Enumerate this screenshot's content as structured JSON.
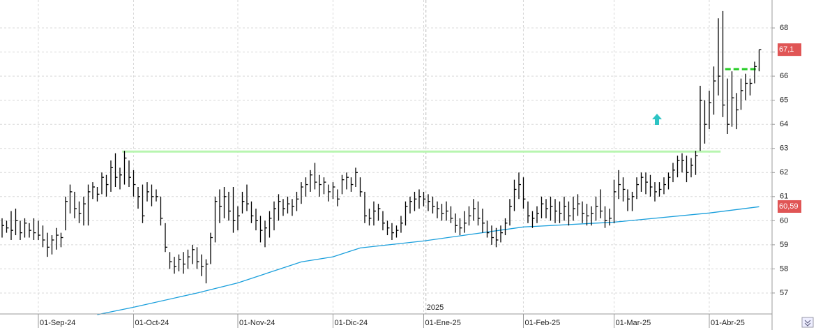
{
  "chart_data": {
    "type": "ohlc",
    "color": "#000000",
    "xlim": [
      -0.46,
      169.85
    ],
    "ylim": [
      56.13,
      69.16
    ],
    "yticks": [
      57,
      58,
      59,
      60,
      61,
      62,
      63,
      64,
      65,
      66,
      67,
      68
    ],
    "xticks": [
      {
        "value": 8,
        "label": "01-Sep-24"
      },
      {
        "value": 29,
        "label": "01-Oct-24"
      },
      {
        "value": 52,
        "label": "01-Nov-24"
      },
      {
        "value": 73,
        "label": "01-Dic-24"
      },
      {
        "value": 93,
        "label": "01-Ene-25"
      },
      {
        "value": 115,
        "label": "01-Feb-25"
      },
      {
        "value": 135,
        "label": "01-Mar-25"
      },
      {
        "value": 156,
        "label": "01-Abr-25"
      }
    ],
    "grid": true,
    "year_marker": {
      "value": 93.5,
      "label": "2025"
    },
    "values": [
      [
        60.1,
        59.3,
        59.8
      ],
      [
        60.0,
        59.5,
        59.7
      ],
      [
        60.4,
        59.2,
        59.6
      ],
      [
        60.5,
        59.4,
        60.0
      ],
      [
        60.0,
        59.2,
        59.5
      ],
      [
        60.1,
        59.3,
        59.9
      ],
      [
        59.9,
        59.3,
        59.6
      ],
      [
        60.1,
        59.2,
        59.5
      ],
      [
        60.0,
        59.2,
        59.4
      ],
      [
        59.8,
        58.9,
        59.2
      ],
      [
        59.5,
        58.5,
        58.9
      ],
      [
        59.4,
        58.6,
        59.2
      ],
      [
        59.7,
        58.8,
        59.4
      ],
      [
        59.5,
        58.9,
        59.3
      ],
      [
        61.0,
        59.6,
        60.8
      ],
      [
        61.5,
        60.3,
        61.2
      ],
      [
        61.2,
        60.1,
        60.5
      ],
      [
        60.8,
        59.9,
        60.3
      ],
      [
        61.0,
        59.8,
        60.7
      ],
      [
        61.5,
        59.8,
        61.2
      ],
      [
        61.6,
        60.9,
        61.4
      ],
      [
        61.4,
        60.8,
        61.1
      ],
      [
        62.0,
        61.1,
        61.8
      ],
      [
        61.9,
        61.0,
        61.5
      ],
      [
        62.5,
        61.2,
        62.2
      ],
      [
        62.8,
        61.4,
        61.8
      ],
      [
        62.2,
        61.3,
        61.9
      ],
      [
        62.9,
        61.5,
        62.6
      ],
      [
        62.5,
        61.4,
        61.8
      ],
      [
        62.1,
        61.0,
        61.5
      ],
      [
        61.4,
        60.5,
        61.0
      ],
      [
        61.5,
        59.9,
        60.2
      ],
      [
        61.6,
        60.8,
        61.2
      ],
      [
        61.5,
        60.6,
        61.0
      ],
      [
        61.3,
        60.8,
        61.0
      ],
      [
        61.0,
        59.8,
        60.1
      ],
      [
        59.9,
        58.7,
        58.9
      ],
      [
        58.7,
        58.0,
        58.3
      ],
      [
        58.5,
        57.8,
        58.1
      ],
      [
        58.6,
        57.9,
        58.4
      ],
      [
        58.7,
        57.8,
        58.2
      ],
      [
        58.8,
        58.0,
        58.5
      ],
      [
        59.0,
        58.2,
        58.8
      ],
      [
        58.9,
        58.0,
        58.3
      ],
      [
        58.6,
        57.7,
        58.1
      ],
      [
        58.4,
        57.4,
        58.2
      ],
      [
        59.5,
        58.2,
        59.3
      ],
      [
        61.0,
        59.1,
        60.8
      ],
      [
        61.3,
        59.9,
        60.6
      ],
      [
        61.4,
        60.1,
        61.0
      ],
      [
        61.2,
        60.0,
        60.4
      ],
      [
        61.4,
        59.5,
        60.0
      ],
      [
        60.6,
        59.6,
        60.2
      ],
      [
        61.2,
        60.3,
        60.8
      ],
      [
        61.5,
        60.4,
        60.7
      ],
      [
        60.8,
        59.9,
        60.2
      ],
      [
        60.5,
        59.6,
        60.0
      ],
      [
        60.2,
        59.1,
        59.6
      ],
      [
        60.0,
        58.9,
        59.7
      ],
      [
        60.4,
        59.3,
        60.1
      ],
      [
        60.8,
        59.6,
        60.5
      ],
      [
        61.1,
        60.0,
        60.8
      ],
      [
        60.9,
        60.2,
        60.5
      ],
      [
        61.0,
        60.3,
        60.7
      ],
      [
        60.9,
        60.2,
        60.6
      ],
      [
        61.2,
        60.4,
        60.9
      ],
      [
        61.6,
        60.7,
        61.4
      ],
      [
        61.8,
        61.0,
        61.5
      ],
      [
        62.1,
        61.2,
        61.9
      ],
      [
        62.4,
        61.3,
        61.6
      ],
      [
        61.9,
        61.0,
        61.5
      ],
      [
        61.8,
        61.1,
        61.6
      ],
      [
        61.5,
        60.8,
        61.2
      ],
      [
        61.6,
        60.9,
        61.4
      ],
      [
        61.3,
        60.6,
        60.9
      ],
      [
        61.9,
        61.1,
        61.7
      ],
      [
        62.0,
        61.3,
        61.8
      ],
      [
        61.8,
        61.2,
        61.5
      ],
      [
        62.2,
        61.4,
        62.0
      ],
      [
        61.8,
        61.0,
        61.2
      ],
      [
        61.2,
        59.9,
        60.2
      ],
      [
        60.5,
        59.8,
        60.1
      ],
      [
        60.8,
        59.8,
        60.4
      ],
      [
        60.7,
        60.0,
        60.5
      ],
      [
        60.4,
        59.6,
        59.9
      ],
      [
        60.0,
        59.4,
        59.7
      ],
      [
        59.9,
        59.2,
        59.5
      ],
      [
        59.8,
        59.3,
        59.6
      ],
      [
        60.2,
        59.5,
        59.9
      ],
      [
        60.8,
        59.8,
        60.6
      ],
      [
        61.0,
        60.3,
        60.8
      ],
      [
        61.2,
        60.4,
        60.9
      ],
      [
        61.3,
        60.5,
        61.0
      ],
      [
        61.2,
        60.6,
        60.9
      ],
      [
        61.1,
        60.4,
        60.8
      ],
      [
        61.0,
        60.3,
        60.6
      ],
      [
        60.8,
        60.1,
        60.5
      ],
      [
        60.7,
        60.0,
        60.3
      ],
      [
        60.8,
        60.0,
        60.4
      ],
      [
        60.6,
        59.9,
        60.1
      ],
      [
        60.3,
        59.5,
        59.8
      ],
      [
        60.1,
        59.4,
        59.7
      ],
      [
        60.4,
        59.5,
        59.9
      ],
      [
        60.6,
        59.8,
        60.2
      ],
      [
        60.9,
        60.0,
        60.5
      ],
      [
        60.8,
        59.8,
        60.1
      ],
      [
        60.5,
        59.5,
        59.9
      ],
      [
        60.0,
        59.3,
        59.5
      ],
      [
        59.8,
        59.0,
        59.3
      ],
      [
        59.7,
        58.9,
        59.2
      ],
      [
        59.8,
        59.1,
        59.5
      ],
      [
        60.1,
        59.4,
        59.9
      ],
      [
        60.9,
        59.8,
        60.6
      ],
      [
        61.7,
        60.4,
        61.3
      ],
      [
        62.0,
        60.9,
        61.5
      ],
      [
        61.8,
        60.5,
        60.9
      ],
      [
        60.8,
        59.9,
        60.2
      ],
      [
        60.4,
        59.7,
        60.1
      ],
      [
        60.6,
        59.9,
        60.3
      ],
      [
        61.0,
        60.1,
        60.7
      ],
      [
        60.9,
        60.1,
        60.5
      ],
      [
        61.0,
        60.0,
        60.6
      ],
      [
        60.9,
        59.9,
        60.4
      ],
      [
        60.8,
        59.9,
        60.3
      ],
      [
        61.0,
        60.0,
        60.6
      ],
      [
        60.8,
        59.8,
        60.2
      ],
      [
        61.0,
        60.0,
        60.5
      ],
      [
        61.1,
        60.2,
        60.7
      ],
      [
        60.8,
        59.9,
        60.3
      ],
      [
        60.7,
        59.8,
        60.2
      ],
      [
        60.6,
        59.8,
        60.3
      ],
      [
        61.0,
        60.0,
        60.6
      ],
      [
        61.3,
        60.1,
        60.4
      ],
      [
        60.6,
        59.7,
        60.0
      ],
      [
        60.5,
        59.8,
        60.1
      ],
      [
        61.7,
        59.9,
        61.2
      ],
      [
        62.1,
        60.9,
        61.5
      ],
      [
        61.8,
        60.8,
        61.3
      ],
      [
        61.3,
        60.4,
        60.9
      ],
      [
        61.2,
        60.4,
        61.0
      ],
      [
        61.8,
        60.9,
        61.5
      ],
      [
        62.0,
        61.2,
        61.8
      ],
      [
        62.0,
        61.1,
        61.6
      ],
      [
        61.9,
        61.0,
        61.4
      ],
      [
        61.6,
        60.8,
        61.2
      ],
      [
        61.6,
        61.0,
        61.3
      ],
      [
        61.8,
        61.1,
        61.5
      ],
      [
        62.0,
        61.3,
        61.8
      ],
      [
        62.4,
        61.6,
        62.1
      ],
      [
        62.7,
        61.8,
        62.5
      ],
      [
        62.8,
        62.0,
        62.5
      ],
      [
        62.7,
        61.6,
        62.0
      ],
      [
        62.6,
        61.8,
        62.3
      ],
      [
        62.9,
        61.9,
        62.7
      ],
      [
        65.6,
        62.9,
        65.0
      ],
      [
        65.0,
        63.2,
        64.0
      ],
      [
        65.4,
        63.8,
        64.9
      ],
      [
        66.4,
        64.4,
        65.8
      ],
      [
        68.4,
        65.2,
        66.0
      ],
      [
        68.7,
        64.3,
        64.8
      ],
      [
        65.9,
        63.6,
        64.0
      ],
      [
        66.2,
        63.9,
        65.1
      ],
      [
        65.3,
        63.8,
        64.6
      ],
      [
        65.9,
        64.6,
        65.4
      ],
      [
        66.1,
        65.0,
        65.7
      ],
      [
        65.9,
        65.2,
        65.7
      ],
      [
        66.6,
        65.7,
        66.4
      ],
      [
        67.1,
        66.2,
        67.1
      ]
    ],
    "moving_average": {
      "color": "#1a9fdc",
      "x": [
        21,
        29,
        43,
        52,
        66,
        73,
        79,
        93,
        115,
        135,
        156,
        167
      ],
      "values": [
        56.1,
        56.41,
        57.0,
        57.42,
        58.29,
        58.5,
        58.87,
        59.16,
        59.74,
        59.94,
        60.32,
        60.58
      ]
    },
    "hlines": [
      {
        "value": 62.87,
        "x": [
          26.5,
          158.5
        ],
        "color": "#b8f5b0",
        "dashed": false
      },
      {
        "value": 66.29,
        "x": [
          159.5,
          167
        ],
        "color": "#22cc22",
        "dashed": true
      }
    ],
    "price_labels": [
      {
        "value": 67.1,
        "label": "67,1",
        "color": "#e05555"
      },
      {
        "value": 60.59,
        "label": "60,59",
        "color": "#e05555"
      }
    ]
  }
}
